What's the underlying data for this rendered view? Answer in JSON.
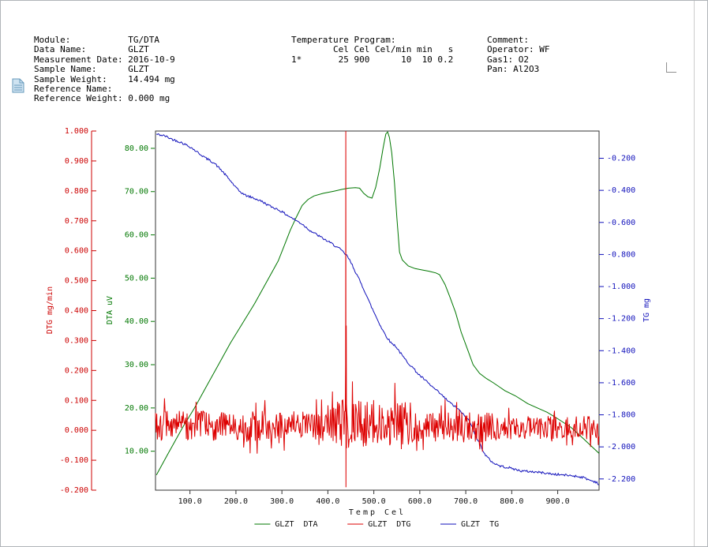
{
  "header": {
    "sample_info_lines": [
      "Module:           TG/DTA",
      "Data Name:        GLZT",
      "Measurement Date: 2016-10-9",
      "Sample Name:      GLZT",
      "Sample Weight:    14.494 mg",
      "Reference Name:",
      "Reference Weight: 0.000 mg"
    ],
    "program_lines": [
      "Temperature Program:",
      "        Cel Cel Cel/min min   s",
      "1*       25 900      10  10 0.2"
    ],
    "comment_lines": [
      "Comment:",
      "Operator: WF",
      "Gas1: O2",
      "Pan: Al2O3"
    ]
  },
  "chart_data": {
    "type": "line",
    "seed": 42,
    "xlabel": "Temp Cel",
    "x_axis": {
      "lim": [
        25,
        990
      ],
      "ticks": [
        100,
        200,
        300,
        400,
        500,
        600,
        700,
        800,
        900
      ],
      "decimals": 1,
      "color": "#111111"
    },
    "y_axes": [
      {
        "id": "dtg",
        "label": "DTG mg/min",
        "color": "#cc0000",
        "lim": [
          -0.2,
          1.0
        ],
        "ticks": [
          1.0,
          0.9,
          0.8,
          0.7,
          0.6,
          0.5,
          0.4,
          0.3,
          0.2,
          0.1,
          0.0,
          -0.1,
          -0.2
        ],
        "decimals": 3
      },
      {
        "id": "dta",
        "label": "DTA uV",
        "color": "#007700",
        "lim": [
          1,
          84
        ],
        "ticks": [
          80,
          70,
          60,
          50,
          40,
          30,
          20,
          10
        ],
        "decimals": 2
      },
      {
        "id": "tg",
        "label": "TG mg",
        "color": "#1111bb",
        "lim": [
          -2.27,
          -0.03
        ],
        "ticks": [
          -0.2,
          -0.4,
          -0.6,
          -0.8,
          -1.0,
          -1.2,
          -1.4,
          -1.6,
          -1.8,
          -2.0,
          -2.2
        ],
        "decimals": 3
      }
    ],
    "series": [
      {
        "id": "glzt-dta",
        "name": "GLZT  DTA",
        "axis": "dta",
        "color": "#007700",
        "points": [
          [
            27,
            4.5
          ],
          [
            50,
            9
          ],
          [
            84,
            15.5
          ],
          [
            110,
            20
          ],
          [
            136,
            25
          ],
          [
            162,
            30
          ],
          [
            188,
            35
          ],
          [
            214,
            39.5
          ],
          [
            240,
            44
          ],
          [
            266,
            49
          ],
          [
            292,
            54
          ],
          [
            305,
            57.5
          ],
          [
            318,
            61
          ],
          [
            331,
            64
          ],
          [
            344,
            66.8
          ],
          [
            357,
            68.2
          ],
          [
            370,
            69
          ],
          [
            390,
            69.6
          ],
          [
            413,
            70.1
          ],
          [
            430,
            70.5
          ],
          [
            445,
            70.8
          ],
          [
            460,
            70.9
          ],
          [
            469,
            70.8
          ],
          [
            478,
            69.6
          ],
          [
            487,
            68.8
          ],
          [
            496,
            68.5
          ],
          [
            504,
            71
          ],
          [
            513,
            75.5
          ],
          [
            520,
            80
          ],
          [
            526,
            83.3
          ],
          [
            530,
            83.8
          ],
          [
            534,
            82.5
          ],
          [
            539,
            79
          ],
          [
            545,
            72
          ],
          [
            550,
            64
          ],
          [
            556,
            56
          ],
          [
            562,
            54.2
          ],
          [
            575,
            52.8
          ],
          [
            590,
            52.2
          ],
          [
            605,
            51.9
          ],
          [
            620,
            51.6
          ],
          [
            635,
            51.2
          ],
          [
            643,
            50.8
          ],
          [
            655,
            48.5
          ],
          [
            666,
            45.5
          ],
          [
            678,
            42
          ],
          [
            690,
            37.5
          ],
          [
            704,
            33.5
          ],
          [
            716,
            30
          ],
          [
            730,
            28
          ],
          [
            745,
            26.8
          ],
          [
            760,
            25.8
          ],
          [
            785,
            24
          ],
          [
            808,
            22.8
          ],
          [
            835,
            21
          ],
          [
            860,
            19.8
          ],
          [
            877,
            19
          ],
          [
            900,
            17.5
          ],
          [
            929,
            15.5
          ],
          [
            955,
            13
          ],
          [
            975,
            11
          ],
          [
            990,
            9.5
          ]
        ]
      },
      {
        "id": "glzt-tg",
        "name": "GLZT  TG",
        "axis": "tg",
        "color": "#1111bb",
        "jitter": 0.007,
        "points": [
          [
            27,
            -0.05
          ],
          [
            45,
            -0.06
          ],
          [
            60,
            -0.08
          ],
          [
            80,
            -0.1
          ],
          [
            101,
            -0.13
          ],
          [
            120,
            -0.17
          ],
          [
            135,
            -0.2
          ],
          [
            153,
            -0.23
          ],
          [
            170,
            -0.28
          ],
          [
            188,
            -0.34
          ],
          [
            205,
            -0.4
          ],
          [
            220,
            -0.43
          ],
          [
            240,
            -0.45
          ],
          [
            257,
            -0.47
          ],
          [
            275,
            -0.5
          ],
          [
            292,
            -0.52
          ],
          [
            309,
            -0.55
          ],
          [
            326,
            -0.58
          ],
          [
            344,
            -0.61
          ],
          [
            361,
            -0.65
          ],
          [
            378,
            -0.68
          ],
          [
            395,
            -0.71
          ],
          [
            413,
            -0.74
          ],
          [
            428,
            -0.77
          ],
          [
            442,
            -0.81
          ],
          [
            452,
            -0.86
          ],
          [
            462,
            -0.92
          ],
          [
            472,
            -0.98
          ],
          [
            482,
            -1.04
          ],
          [
            492,
            -1.11
          ],
          [
            502,
            -1.17
          ],
          [
            512,
            -1.23
          ],
          [
            517,
            -1.26
          ],
          [
            527,
            -1.31
          ],
          [
            537,
            -1.35
          ],
          [
            547,
            -1.37
          ],
          [
            552,
            -1.39
          ],
          [
            564,
            -1.44
          ],
          [
            576,
            -1.48
          ],
          [
            586,
            -1.51
          ],
          [
            598,
            -1.55
          ],
          [
            610,
            -1.58
          ],
          [
            621,
            -1.61
          ],
          [
            633,
            -1.64
          ],
          [
            645,
            -1.67
          ],
          [
            656,
            -1.7
          ],
          [
            668,
            -1.73
          ],
          [
            682,
            -1.76
          ],
          [
            695,
            -1.8
          ],
          [
            708,
            -1.84
          ],
          [
            716,
            -1.89
          ],
          [
            725,
            -1.95
          ],
          [
            734,
            -2.0
          ],
          [
            742,
            -2.05
          ],
          [
            752,
            -2.08
          ],
          [
            760,
            -2.1
          ],
          [
            775,
            -2.12
          ],
          [
            794,
            -2.13
          ],
          [
            820,
            -2.15
          ],
          [
            845,
            -2.155
          ],
          [
            864,
            -2.16
          ],
          [
            890,
            -2.17
          ],
          [
            912,
            -2.175
          ],
          [
            933,
            -2.18
          ],
          [
            955,
            -2.19
          ],
          [
            972,
            -2.21
          ],
          [
            985,
            -2.22
          ],
          [
            990,
            -2.24
          ]
        ]
      },
      {
        "id": "glzt-dtg",
        "name": "GLZT  DTG",
        "axis": "dtg",
        "color": "#dd0000",
        "noise": {
          "step": 1.4,
          "segments": [
            [
              25,
              380,
              0.015,
              0.05
            ],
            [
              380,
              580,
              0.02,
              0.085
            ],
            [
              580,
              770,
              0.01,
              0.05
            ],
            [
              770,
              992,
              0.008,
              0.04
            ]
          ]
        },
        "spike": {
          "x": 439,
          "top": 1.0,
          "bottom": -0.19
        }
      }
    ],
    "legend": [
      {
        "label": "GLZT  DTA",
        "color": "#007700"
      },
      {
        "label": "GLZT  DTG",
        "color": "#dd0000"
      },
      {
        "label": "GLZT  TG",
        "color": "#1111bb"
      }
    ]
  }
}
